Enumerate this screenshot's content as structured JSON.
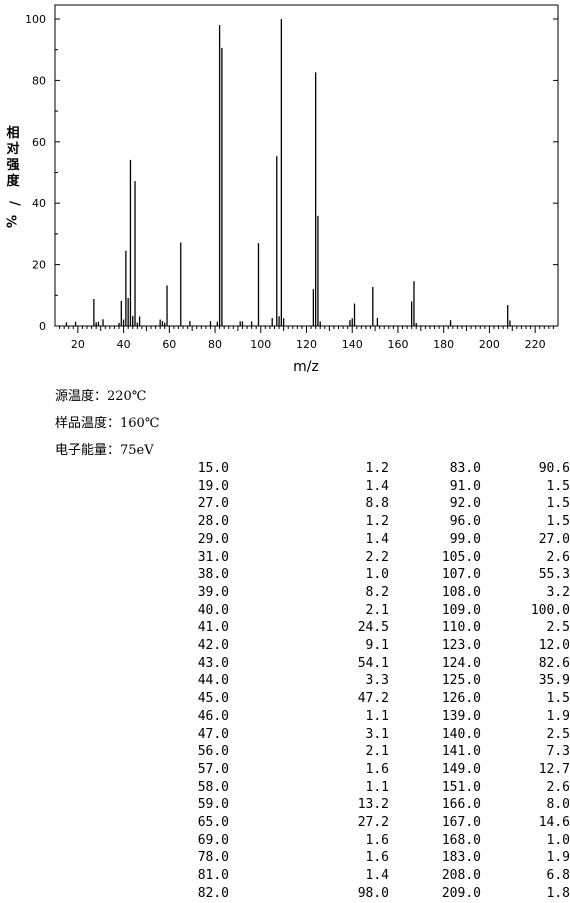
{
  "chart_data": {
    "type": "bar",
    "xlabel": "m/z",
    "ylabel": "相对强度/%",
    "xlim": [
      10,
      230
    ],
    "ylim": [
      0,
      105
    ],
    "xticks": [
      20,
      40,
      60,
      80,
      100,
      120,
      140,
      160,
      180,
      200,
      220
    ],
    "yticks": [
      0,
      20,
      40,
      60,
      80,
      100
    ],
    "grid": false,
    "peaks": [
      {
        "x": 15.0,
        "y": 1.2
      },
      {
        "x": 19.0,
        "y": 1.4
      },
      {
        "x": 27.0,
        "y": 8.8
      },
      {
        "x": 28.0,
        "y": 1.2
      },
      {
        "x": 29.0,
        "y": 1.4
      },
      {
        "x": 31.0,
        "y": 2.2
      },
      {
        "x": 38.0,
        "y": 1.0
      },
      {
        "x": 39.0,
        "y": 8.2
      },
      {
        "x": 40.0,
        "y": 2.1
      },
      {
        "x": 41.0,
        "y": 24.5
      },
      {
        "x": 42.0,
        "y": 9.1
      },
      {
        "x": 43.0,
        "y": 54.1
      },
      {
        "x": 44.0,
        "y": 3.3
      },
      {
        "x": 45.0,
        "y": 47.2
      },
      {
        "x": 46.0,
        "y": 1.1
      },
      {
        "x": 47.0,
        "y": 3.1
      },
      {
        "x": 56.0,
        "y": 2.1
      },
      {
        "x": 57.0,
        "y": 1.6
      },
      {
        "x": 58.0,
        "y": 1.1
      },
      {
        "x": 59.0,
        "y": 13.2
      },
      {
        "x": 65.0,
        "y": 27.2
      },
      {
        "x": 69.0,
        "y": 1.6
      },
      {
        "x": 78.0,
        "y": 1.6
      },
      {
        "x": 81.0,
        "y": 1.4
      },
      {
        "x": 82.0,
        "y": 98.0
      },
      {
        "x": 83.0,
        "y": 90.6
      },
      {
        "x": 91.0,
        "y": 1.5
      },
      {
        "x": 92.0,
        "y": 1.5
      },
      {
        "x": 96.0,
        "y": 1.5
      },
      {
        "x": 99.0,
        "y": 27.0
      },
      {
        "x": 105.0,
        "y": 2.6
      },
      {
        "x": 107.0,
        "y": 55.3
      },
      {
        "x": 108.0,
        "y": 3.2
      },
      {
        "x": 109.0,
        "y": 100.0
      },
      {
        "x": 110.0,
        "y": 2.5
      },
      {
        "x": 123.0,
        "y": 12.0
      },
      {
        "x": 124.0,
        "y": 82.6
      },
      {
        "x": 125.0,
        "y": 35.9
      },
      {
        "x": 126.0,
        "y": 1.5
      },
      {
        "x": 139.0,
        "y": 1.9
      },
      {
        "x": 140.0,
        "y": 2.5
      },
      {
        "x": 141.0,
        "y": 7.3
      },
      {
        "x": 149.0,
        "y": 12.7
      },
      {
        "x": 151.0,
        "y": 2.6
      },
      {
        "x": 166.0,
        "y": 8.0
      },
      {
        "x": 167.0,
        "y": 14.6
      },
      {
        "x": 168.0,
        "y": 1.0
      },
      {
        "x": 183.0,
        "y": 1.9
      },
      {
        "x": 208.0,
        "y": 6.8
      },
      {
        "x": 209.0,
        "y": 1.8
      }
    ]
  },
  "info": {
    "source_temp": "源温度：220℃",
    "sample_temp": "样品温度：160℃",
    "electron_energy": "电子能量：75eV"
  },
  "table": {
    "rows": [
      [
        "15.0",
        "1.2",
        "83.0",
        "90.6"
      ],
      [
        "19.0",
        "1.4",
        "91.0",
        "1.5"
      ],
      [
        "27.0",
        "8.8",
        "92.0",
        "1.5"
      ],
      [
        "28.0",
        "1.2",
        "96.0",
        "1.5"
      ],
      [
        "29.0",
        "1.4",
        "99.0",
        "27.0"
      ],
      [
        "31.0",
        "2.2",
        "105.0",
        "2.6"
      ],
      [
        "38.0",
        "1.0",
        "107.0",
        "55.3"
      ],
      [
        "39.0",
        "8.2",
        "108.0",
        "3.2"
      ],
      [
        "40.0",
        "2.1",
        "109.0",
        "100.0"
      ],
      [
        "41.0",
        "24.5",
        "110.0",
        "2.5"
      ],
      [
        "42.0",
        "9.1",
        "123.0",
        "12.0"
      ],
      [
        "43.0",
        "54.1",
        "124.0",
        "82.6"
      ],
      [
        "44.0",
        "3.3",
        "125.0",
        "35.9"
      ],
      [
        "45.0",
        "47.2",
        "126.0",
        "1.5"
      ],
      [
        "46.0",
        "1.1",
        "139.0",
        "1.9"
      ],
      [
        "47.0",
        "3.1",
        "140.0",
        "2.5"
      ],
      [
        "56.0",
        "2.1",
        "141.0",
        "7.3"
      ],
      [
        "57.0",
        "1.6",
        "149.0",
        "12.7"
      ],
      [
        "58.0",
        "1.1",
        "151.0",
        "2.6"
      ],
      [
        "59.0",
        "13.2",
        "166.0",
        "8.0"
      ],
      [
        "65.0",
        "27.2",
        "167.0",
        "14.6"
      ],
      [
        "69.0",
        "1.6",
        "168.0",
        "1.0"
      ],
      [
        "78.0",
        "1.6",
        "183.0",
        "1.9"
      ],
      [
        "81.0",
        "1.4",
        "208.0",
        "6.8"
      ],
      [
        "82.0",
        "98.0",
        "209.0",
        "1.8"
      ]
    ]
  }
}
